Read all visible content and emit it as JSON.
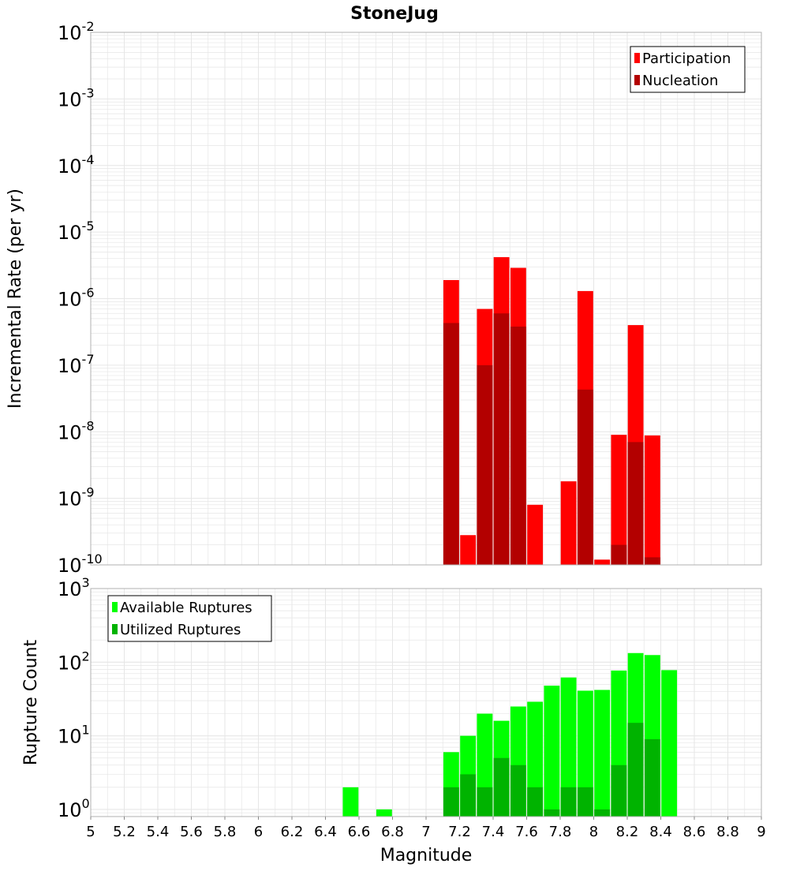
{
  "title": "StoneJug",
  "colors": {
    "participation": "#ff0000",
    "nucleation": "#b30000",
    "available": "#00ff00",
    "utilized": "#00b300",
    "grid": "#e6e6e6",
    "frame": "#b0b0b0"
  },
  "chart_data": [
    {
      "type": "bar",
      "panel": "top",
      "title": "StoneJug",
      "xlabel": "",
      "ylabel": "Incremental Rate (per yr)",
      "yscale": "log",
      "ylim": [
        1e-10,
        0.01
      ],
      "xlim": [
        5,
        9
      ],
      "ytick_exponents": [
        "-2",
        "-3",
        "-4",
        "-5",
        "-6",
        "-7",
        "-8",
        "-9",
        "-10"
      ],
      "grid": true,
      "legend_position": "top-right",
      "x": [
        7.15,
        7.25,
        7.35,
        7.45,
        7.55,
        7.65,
        7.85,
        7.95,
        8.05,
        8.15,
        8.25,
        8.35
      ],
      "series": [
        {
          "name": "Participation",
          "values": [
            1.9e-06,
            2.8e-10,
            7e-07,
            4.2e-06,
            2.9e-06,
            8e-10,
            1.8e-09,
            1.3e-06,
            1.2e-10,
            9e-09,
            4e-07,
            8.8e-09
          ]
        },
        {
          "name": "Nucleation",
          "values": [
            4.3e-07,
            null,
            1e-07,
            6e-07,
            3.8e-07,
            null,
            null,
            4.3e-08,
            null,
            2e-10,
            7e-09,
            1.3e-10
          ]
        }
      ]
    },
    {
      "type": "bar",
      "panel": "bottom",
      "xlabel": "Magnitude",
      "ylabel": "Rupture Count",
      "yscale": "log",
      "ylim": [
        0.8,
        1000
      ],
      "xlim": [
        5,
        9
      ],
      "ytick_exponents": [
        "3",
        "2",
        "1",
        "0"
      ],
      "xticks": [
        "5",
        "5.2",
        "5.4",
        "5.6",
        "5.8",
        "6",
        "6.2",
        "6.4",
        "6.6",
        "6.8",
        "7",
        "7.2",
        "7.4",
        "7.6",
        "7.8",
        "8",
        "8.2",
        "8.4",
        "8.6",
        "8.8",
        "9"
      ],
      "grid": true,
      "legend_position": "top-left",
      "x": [
        6.55,
        6.75,
        7.15,
        7.25,
        7.35,
        7.45,
        7.55,
        7.65,
        7.75,
        7.85,
        7.95,
        8.05,
        8.15,
        8.25,
        8.35,
        8.45
      ],
      "series": [
        {
          "name": "Available Ruptures",
          "values": [
            2,
            1,
            6,
            10,
            20,
            16,
            25,
            29,
            48,
            62,
            41,
            42,
            77,
            133,
            125,
            78
          ]
        },
        {
          "name": "Utilized Ruptures",
          "values": [
            null,
            null,
            2,
            3,
            2,
            5,
            4,
            2,
            1,
            2,
            2,
            1,
            4,
            15,
            9,
            null
          ]
        }
      ]
    }
  ]
}
